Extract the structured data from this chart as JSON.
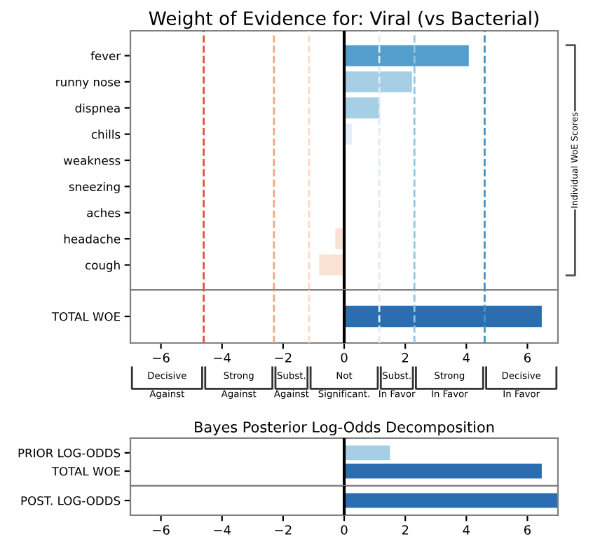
{
  "chart_data": [
    {
      "type": "bar",
      "orientation": "horizontal",
      "title": "Weight of Evidence for: Viral (vs Bacterial)",
      "categories": [
        "fever",
        "runny nose",
        "dispnea",
        "chills",
        "weakness",
        "sneezing",
        "aches",
        "headache",
        "cough"
      ],
      "values": [
        4.08,
        2.22,
        1.16,
        0.25,
        0.03,
        -0.02,
        -0.05,
        -0.29,
        -0.82
      ],
      "colors": [
        "#539ecd",
        "#a6cee4",
        "#a6cee4",
        "#e3eef8",
        "#f7fbff",
        "#fff5f0",
        "#fff0e8",
        "#fbe3d4",
        "#fbe3d4"
      ],
      "xlim": [
        -7,
        7
      ],
      "tick_labels": "y",
      "grid": false,
      "legend": false,
      "ref_lines": [
        {
          "axis": "x",
          "value": -4.6,
          "color": "#e0523f",
          "line_style": "dashed"
        },
        {
          "axis": "x",
          "value": -2.3,
          "color": "#f4a582",
          "line_style": "dashed"
        },
        {
          "axis": "x",
          "value": -1.15,
          "color": "#fcd9c6",
          "line_style": "dashed"
        },
        {
          "axis": "x",
          "value": 0,
          "color": "#000000",
          "line_style": "solid"
        },
        {
          "axis": "x",
          "value": 1.15,
          "color": "#deebf7",
          "line_style": "dashed"
        },
        {
          "axis": "x",
          "value": 2.3,
          "color": "#92c5de",
          "line_style": "dashed"
        },
        {
          "axis": "x",
          "value": 4.6,
          "color": "#4393c3",
          "line_style": "dashed"
        }
      ],
      "annotations": [
        "Individual WoE Scores"
      ]
    },
    {
      "type": "bar",
      "orientation": "horizontal",
      "categories": [
        "TOTAL WOE"
      ],
      "values": [
        6.47
      ],
      "colors": [
        "#2a6db0"
      ],
      "xlim": [
        -7,
        7
      ],
      "xticks": [
        {
          "value": -6,
          "label": "−6"
        },
        {
          "value": -4,
          "label": "−4"
        },
        {
          "value": -2,
          "label": "−2"
        },
        0,
        2,
        4,
        6
      ],
      "grid": false,
      "legend": false,
      "ref_lines": [
        {
          "axis": "x",
          "value": -4.6,
          "color": "#e0523f",
          "line_style": "dashed"
        },
        {
          "axis": "x",
          "value": -2.3,
          "color": "#f4a582",
          "line_style": "dashed"
        },
        {
          "axis": "x",
          "value": -1.15,
          "color": "#fcd9c6",
          "line_style": "dashed"
        },
        {
          "axis": "x",
          "value": 0,
          "color": "#000000",
          "line_style": "solid"
        },
        {
          "axis": "x",
          "value": 1.15,
          "color": "#deebf7",
          "line_style": "dashed"
        },
        {
          "axis": "x",
          "value": 2.3,
          "color": "#92c5de",
          "line_style": "dashed"
        },
        {
          "axis": "x",
          "value": 4.6,
          "color": "#4393c3",
          "line_style": "dashed"
        }
      ],
      "annotations": [
        "Decisive\nAgainst",
        "Strong\nAgainst",
        "Subst.\nAgainst",
        "Not\nSignificant.",
        "Subst.\nIn Favor",
        "Strong\nIn Favor",
        "Decisive\nIn Favor"
      ]
    },
    {
      "type": "bar",
      "orientation": "horizontal",
      "title": "Bayes Posterior Log-Odds Decomposition",
      "categories": [
        "PRIOR LOG-ODDS",
        "TOTAL WOE"
      ],
      "values": [
        1.5,
        6.47
      ],
      "colors": [
        "#a6cee4",
        "#2a6db0"
      ],
      "xlim": [
        -7,
        7
      ],
      "tick_labels": "y",
      "grid": false,
      "legend": false,
      "ref_lines": [
        {
          "axis": "x",
          "value": 0,
          "color": "#000000",
          "line_style": "solid"
        }
      ]
    },
    {
      "type": "bar",
      "orientation": "horizontal",
      "categories": [
        "POST. LOG-ODDS"
      ],
      "values": [
        7
      ],
      "colors": [
        "#2a6db0"
      ],
      "xlim": [
        -7,
        7
      ],
      "xticks": [
        {
          "value": -6,
          "label": "−6"
        },
        {
          "value": -4,
          "label": "−4"
        },
        {
          "value": -2,
          "label": "−2"
        },
        0,
        2,
        4,
        6
      ],
      "grid": false,
      "legend": false,
      "ref_lines": [
        {
          "axis": "x",
          "value": 0,
          "color": "#000000",
          "line_style": "solid"
        }
      ]
    }
  ]
}
